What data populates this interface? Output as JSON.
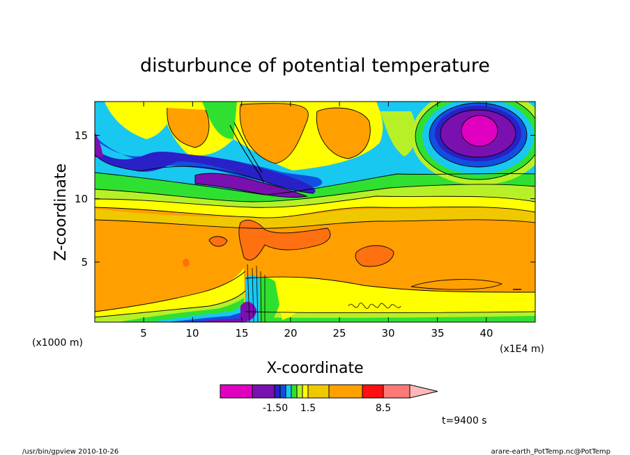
{
  "chart_data": {
    "type": "heatmap",
    "title": "disturbunce of potential temperature",
    "xlabel": "X-coordinate",
    "ylabel": "Z-coordinate",
    "x_unit_left": "(x1000 m)",
    "x_unit_right": "(x1E4 m)",
    "xlim": [
      0,
      45
    ],
    "ylim": [
      0.2,
      17.6
    ],
    "x_ticks": [
      "5",
      "10",
      "15",
      "20",
      "25",
      "30",
      "35",
      "40"
    ],
    "y_ticks": [
      "5",
      "10",
      "15"
    ],
    "colorbar": {
      "colors": [
        "#e000c0",
        "#7a10b0",
        "#2a20c8",
        "#1050e0",
        "#18c8f0",
        "#30e030",
        "#b8f028",
        "#ffff00",
        "#f0c800",
        "#ffa000",
        "#ff7010",
        "#ff1010",
        "#ff7878",
        "#ffb8b8"
      ],
      "tick_labels": [
        "-1.50",
        "1.5",
        "8.5"
      ]
    },
    "time_label": "t=9400 s",
    "footer_left": "/usr/bin/gpview   2010-10-26",
    "footer_right": "arare-earth_PotTemp.nc@PotTemp"
  }
}
